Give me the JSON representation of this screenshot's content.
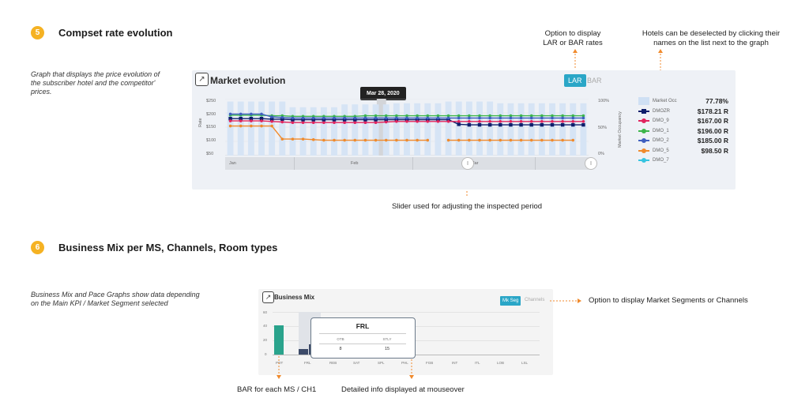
{
  "section5": {
    "number": "5",
    "title": "Compset rate evolution",
    "note": "Graph that displays the price evolution of the subscriber hotel and the competitor' prices."
  },
  "callouts": {
    "lar_bar": "Option to display LAR or BAR rates",
    "deselect": "Hotels can be deselected by clicking their names on the list next to the graph",
    "slider": "Slider used for adjusting the inspected period",
    "mkseg": "Option to display Market Segments or Channels",
    "bar_each": "BAR for each MS / CH1",
    "mouseover": "Detailed info displayed at mouseover"
  },
  "market_panel": {
    "title": "Market evolution",
    "lar_label": "LAR",
    "bar_label": "BAR",
    "tooltip_date": "Mar 28, 2020",
    "y_label": "Rate",
    "y2_label": "Market Occupancy",
    "y_ticks": [
      "$250",
      "$200",
      "$150",
      "$100",
      "$50"
    ],
    "y2_ticks": [
      "100%",
      "50%",
      "0%"
    ],
    "nav_labels": [
      "Jan",
      "Feb",
      "Mar"
    ],
    "legend": [
      {
        "name": "Market Occ",
        "value": "77.78%",
        "color": "#cfe0f4"
      },
      {
        "name": "DMOZR",
        "value": "$178.21 R",
        "color": "#0e1e6b"
      },
      {
        "name": "DMO_9",
        "value": "$167.00 R",
        "color": "#e0245e"
      },
      {
        "name": "DMO_1",
        "value": "$196.00 R",
        "color": "#3cb54a"
      },
      {
        "name": "DMO_2",
        "value": "$185.00 R",
        "color": "#3f5fbf"
      },
      {
        "name": "DMO_5",
        "value": "$98.50 R",
        "color": "#f08a2c"
      },
      {
        "name": "DMO_7",
        "value": "",
        "color": "#36c4e0"
      }
    ]
  },
  "section6": {
    "number": "6",
    "title": "Business Mix per MS, Channels, Room types",
    "note": "Business Mix and Pace Graphs show data depending on the Main KPI / Market Segment selected"
  },
  "mix_panel": {
    "title": "Business Mix",
    "mkseg_label": "Mk Seg",
    "channels_label": "Channels",
    "y_ticks": [
      "60",
      "40",
      "20",
      "0"
    ],
    "categories": [
      "POT",
      "FRL",
      "REB",
      "SAT",
      "SPL",
      "PHL",
      "FGB",
      "INT",
      "ITL",
      "LOB",
      "LSL"
    ],
    "tooltip": {
      "title": "FRL",
      "col1": "OTB",
      "col2": "STLY",
      "v1": "8",
      "v2": "15"
    }
  },
  "chart_data": {
    "type": "line",
    "title": "Market evolution",
    "ylabel": "Rate",
    "ylim": [
      50,
      250
    ],
    "y2label": "Market Occupancy",
    "y2lim": [
      0,
      100
    ],
    "series": [
      {
        "name": "DMOZR",
        "values": [
          180,
          180,
          180,
          180,
          178,
          178,
          176,
          176,
          176,
          176,
          176,
          176,
          176,
          176,
          176,
          176,
          176,
          176,
          176,
          176,
          176,
          176,
          160,
          158,
          158,
          158,
          158,
          158,
          158,
          158,
          158,
          158,
          158,
          158,
          158
        ]
      },
      {
        "name": "DMO_9",
        "values": [
          172,
          172,
          172,
          172,
          170,
          168,
          166,
          166,
          166,
          166,
          166,
          166,
          166,
          166,
          166,
          168,
          170,
          170,
          170,
          170,
          170,
          170,
          170,
          170,
          170,
          170,
          170,
          170,
          170,
          170,
          170,
          170,
          170,
          170,
          170
        ]
      },
      {
        "name": "DMO_1",
        "values": [
          192,
          192,
          192,
          192,
          190,
          190,
          188,
          188,
          188,
          188,
          188,
          188,
          188,
          190,
          190,
          190,
          190,
          190,
          190,
          190,
          190,
          190,
          190,
          190,
          190,
          190,
          190,
          190,
          190,
          190,
          190,
          190,
          190,
          190,
          190
        ]
      },
      {
        "name": "DMO_2",
        "values": [
          196,
          196,
          196,
          196,
          186,
          184,
          182,
          182,
          182,
          182,
          182,
          182,
          182,
          182,
          182,
          182,
          182,
          182,
          182,
          182,
          182,
          182,
          182,
          182,
          182,
          182,
          182,
          182,
          182,
          182,
          182,
          182,
          182,
          182,
          182
        ]
      },
      {
        "name": "DMO_5",
        "values": [
          154,
          154,
          154,
          154,
          154,
          108,
          108,
          108,
          106,
          104,
          104,
          104,
          104,
          104,
          104,
          104,
          104,
          104,
          104,
          104,
          null,
          104,
          104,
          104,
          104,
          104,
          104,
          104,
          104,
          104,
          104,
          104,
          104,
          104,
          null
        ]
      }
    ],
    "occupancy": [
      95,
      95,
      95,
      95,
      95,
      95,
      85,
      85,
      85,
      85,
      85,
      90,
      90,
      90,
      90,
      90,
      92,
      92,
      92,
      92,
      92,
      95,
      95,
      95,
      95,
      95,
      92,
      92,
      92,
      92,
      92,
      92,
      92,
      92,
      92
    ]
  }
}
